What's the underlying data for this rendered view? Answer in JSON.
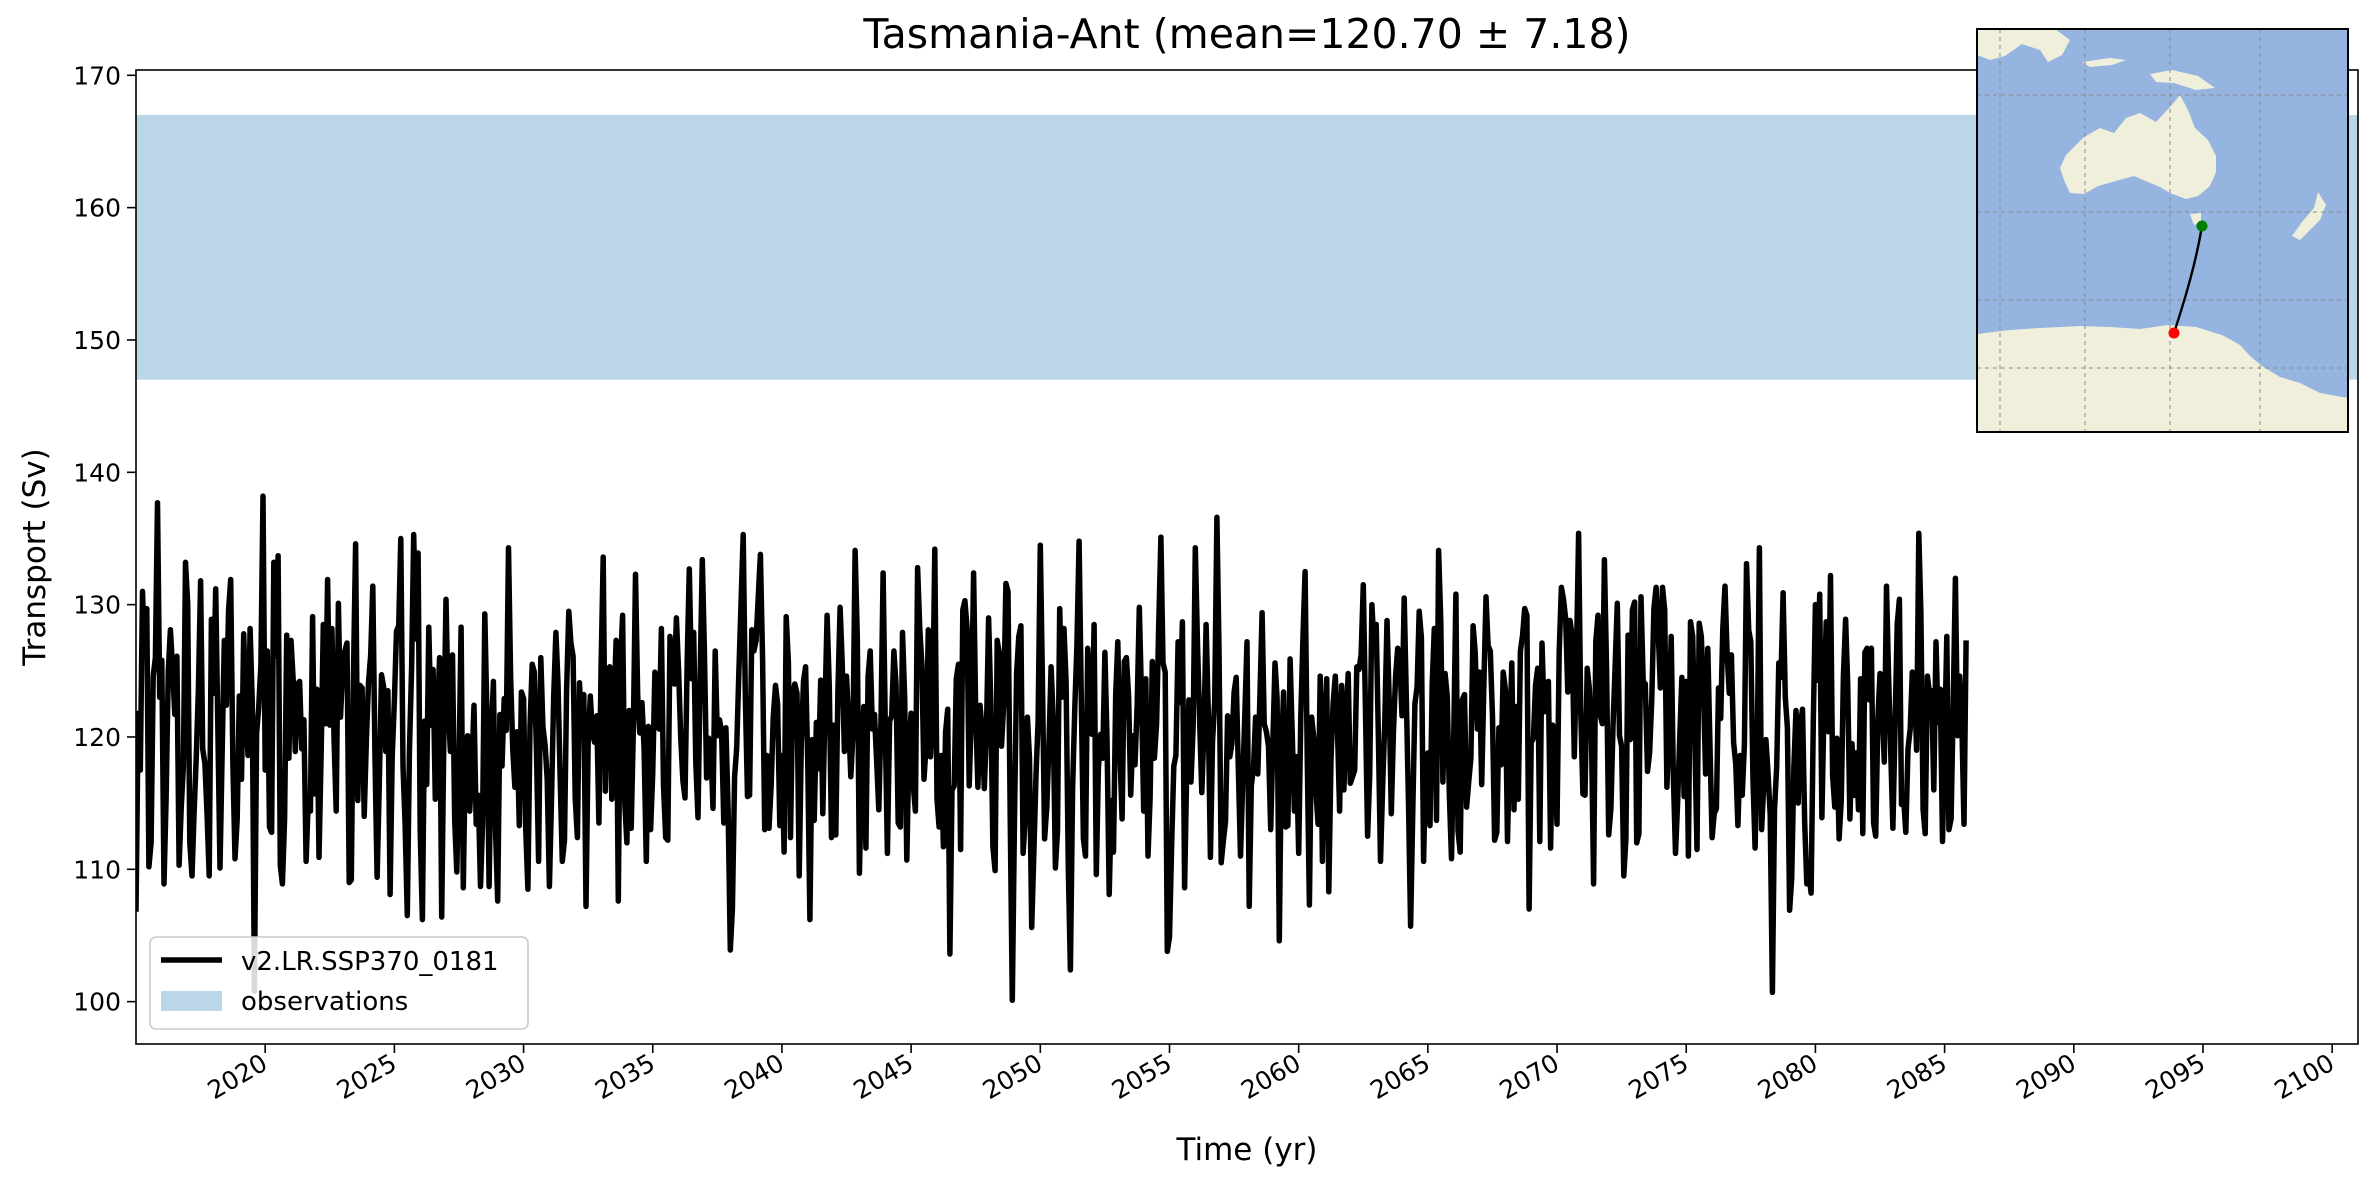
{
  "chart_data": {
    "type": "line",
    "title": "Tasmania-Ant (mean=120.70 ± 7.18)",
    "xlabel": "Time (yr)",
    "ylabel": "Transport (Sv)",
    "xlim": [
      2015.0,
      2101.0
    ],
    "ylim": [
      96.8,
      170.4
    ],
    "x_ticks": [
      2020,
      2025,
      2030,
      2035,
      2040,
      2045,
      2050,
      2055,
      2060,
      2065,
      2070,
      2075,
      2080,
      2085,
      2090,
      2095,
      2100
    ],
    "y_ticks": [
      100,
      110,
      120,
      130,
      140,
      150,
      160,
      170
    ],
    "grid": false,
    "legend_position": "lower-left",
    "observations": {
      "name": "observations",
      "range": [
        147.0,
        167.0
      ],
      "color": "#bad6e8"
    },
    "series": [
      {
        "name": "v2.LR.SSP370_0181",
        "color": "#000000",
        "x_start": 2015.0,
        "step": 0.0833333,
        "values": [
          106.8,
          121.8,
          117.5,
          131.0,
          126.2,
          129.7,
          110.2,
          112.0,
          124.6,
          126.0,
          137.7,
          123.0,
          125.8,
          108.9,
          115.3,
          125.0,
          128.1,
          125.2,
          121.7,
          126.1,
          110.3,
          114.6,
          117.8,
          133.2,
          130.1,
          112.0,
          109.5,
          114.3,
          118.6,
          123.6,
          131.8,
          119.1,
          118.0,
          114.1,
          109.5,
          128.9,
          123.3,
          131.2,
          121.0,
          110.1,
          118.6,
          127.3,
          122.4,
          129.6,
          131.9,
          117.9,
          110.8,
          113.8,
          123.1,
          116.8,
          127.8,
          121.9,
          118.6,
          128.2,
          122.5,
          100.8,
          120.3,
          122.2,
          125.5,
          138.2,
          117.5,
          126.5,
          113.2,
          112.8,
          133.2,
          126.1,
          133.7,
          110.3,
          108.9,
          113.8,
          127.7,
          118.4,
          127.3,
          124.3,
          118.9,
          124.0,
          124.2,
          119.1,
          121.3,
          110.6,
          115.1,
          114.4,
          129.1,
          115.7,
          123.6,
          110.9,
          119.0,
          128.5,
          121.0,
          131.9,
          120.9,
          128.2,
          119.7,
          114.4,
          130.1,
          121.5,
          125.1,
          126.5,
          127.1,
          109.0,
          109.2,
          124.9,
          134.6,
          115.2,
          123.9,
          123.7,
          114.0,
          119.8,
          124.1,
          126.2,
          131.4,
          118.4,
          109.4,
          116.5,
          124.7,
          123.8,
          118.9,
          123.5,
          108.1,
          118.5,
          122.8,
          128.0,
          128.4,
          135.0,
          117.8,
          113.4,
          106.5,
          118.9,
          125.2,
          135.3,
          127.4,
          133.9,
          112.9,
          106.2,
          121.2,
          116.4,
          128.3,
          120.9,
          125.1,
          115.3,
          121.5,
          126.0,
          106.4,
          120.5,
          130.4,
          122.1,
          118.9,
          126.2,
          113.7,
          109.8,
          117.9,
          128.3,
          108.6,
          119.2,
          120.1,
          114.4,
          117.8,
          122.4,
          113.4,
          115.6,
          108.7,
          113.6,
          129.3,
          121.4,
          108.7,
          120.2,
          124.2,
          112.8,
          107.6,
          121.7,
          117.8,
          122.9,
          120.5,
          134.3,
          124.6,
          119.0,
          116.2,
          120.4,
          113.3,
          123.4,
          122.9,
          113.1,
          108.5,
          120.8,
          125.5,
          124.9,
          118.9,
          110.6,
          126.0,
          120.8,
          119.4,
          116.8,
          108.7,
          115.3,
          123.1,
          127.9,
          124.1,
          116.8,
          110.6,
          112.2,
          123.6,
          129.5,
          127.1,
          126.1,
          115.4,
          112.4,
          124.1,
          120.1,
          123.2,
          107.2,
          119.8,
          123.1,
          120.2,
          119.6,
          121.6,
          113.5,
          125.4,
          133.6,
          115.9,
          124.1,
          125.3,
          115.3,
          122.2,
          127.3,
          107.6,
          125.3,
          129.2,
          115.0,
          112.0,
          122.0,
          113.1,
          120.8,
          132.3,
          123.1,
          120.3,
          122.6,
          119.1,
          110.6,
          120.8,
          113.0,
          117.2,
          124.9,
          121.2,
          120.6,
          128.2,
          116.3,
          112.4,
          112.2,
          127.6,
          125.4,
          124.0,
          129.0,
          125.0,
          120.0,
          116.7,
          115.4,
          125.8,
          132.7,
          124.4,
          127.9,
          118.1,
          113.9,
          124.4,
          133.4,
          126.5,
          116.9,
          119.9,
          119.2,
          114.6,
          126.5,
          120.1,
          121.3,
          120.4,
          113.5,
          120.7,
          114.6,
          103.9,
          107.0,
          117.0,
          119.2,
          125.0,
          130.0,
          135.3,
          123.2,
          115.5,
          115.6,
          128.1,
          126.5,
          127.3,
          130.5,
          133.8,
          125.8,
          113.0,
          118.6,
          113.1,
          116.4,
          121.6,
          123.9,
          122.5,
          113.3,
          118.6,
          111.3,
          129.1,
          125.6,
          112.4,
          123.3,
          124.0,
          123.3,
          109.5,
          119.5,
          124.2,
          125.3,
          117.9,
          106.2,
          119.8,
          113.7,
          121.1,
          117.6,
          124.3,
          114.2,
          122.3,
          129.2,
          123.8,
          112.4,
          120.9,
          112.6,
          123.4,
          129.8,
          125.6,
          118.9,
          124.6,
          121.1,
          117.0,
          120.3,
          134.1,
          127.5,
          109.7,
          117.0,
          122.3,
          111.6,
          124.6,
          126.5,
          120.6,
          121.7,
          118.1,
          114.5,
          121.3,
          132.4,
          120.8,
          111.2,
          121.2,
          121.6,
          126.5,
          124.0,
          113.5,
          113.2,
          127.9,
          122.9,
          110.7,
          119.3,
          121.8,
          116.3,
          114.4,
          132.8,
          128.3,
          125.4,
          116.8,
          119.5,
          128.1,
          118.5,
          121.4,
          134.2,
          115.3,
          113.2,
          118.6,
          111.7,
          120.4,
          122.1,
          103.6,
          116.0,
          116.3,
          124.4,
          125.5,
          111.5,
          129.6,
          130.3,
          128.2,
          116.3,
          121.9,
          132.4,
          121.9,
          116.2,
          122.4,
          120.5,
          116.1,
          120.6,
          129.0,
          122.5,
          111.7,
          109.9,
          127.3,
          126.3,
          119.3,
          122.5,
          131.6,
          131.0,
          114.0,
          100.1,
          113.9,
          124.8,
          127.6,
          128.4,
          111.2,
          113.8,
          121.5,
          118.4,
          105.6,
          111.1,
          117.1,
          121.2,
          134.5,
          123.9,
          112.3,
          114.7,
          119.3,
          125.3,
          121.4,
          110.1,
          112.9,
          129.7,
          123.0,
          128.2,
          124.1,
          110.1,
          102.4,
          116.1,
          122.2,
          126.9,
          134.8,
          123.3,
          112.3,
          111.0,
          126.7,
          123.4,
          120.2,
          128.5,
          109.6,
          117.6,
          120.2,
          118.4,
          126.4,
          119.9,
          108.1,
          115.2,
          111.3,
          123.2,
          127.2,
          118.7,
          113.8,
          125.7,
          126.0,
          123.1,
          115.6,
          120.1,
          117.9,
          122.5,
          129.8,
          123.0,
          114.4,
          124.4,
          111.0,
          115.4,
          125.7,
          118.4,
          121.0,
          128.4,
          135.1,
          125.6,
          124.9,
          103.8,
          104.9,
          111.7,
          117.8,
          118.6,
          127.2,
          122.6,
          128.7,
          108.6,
          117.4,
          122.8,
          116.6,
          120.9,
          134.3,
          127.0,
          121.3,
          115.8,
          120.5,
          128.5,
          122.1,
          110.9,
          119.6,
          122.7,
          136.6,
          126.6,
          110.5,
          112.1,
          113.6,
          121.6,
          118.5,
          119.5,
          123.4,
          124.5,
          117.4,
          111.0,
          116.5,
          121.6,
          127.2,
          107.2,
          116.3,
          117.7,
          121.5,
          117.2,
          123.0,
          129.4,
          121.0,
          120.4,
          119.3,
          113.0,
          119.4,
          125.6,
          122.9,
          104.6,
          118.7,
          123.4,
          113.2,
          113.3,
          125.9,
          120.3,
          114.4,
          118.5,
          111.2,
          121.6,
          127.6,
          132.5,
          118.1,
          107.3,
          121.5,
          120.0,
          115.9,
          113.4,
          124.6,
          110.6,
          121.0,
          124.4,
          108.3,
          118.3,
          122.5,
          124.6,
          120.8,
          114.4,
          123.9,
          116.0,
          121.0,
          124.8,
          116.5,
          117.0,
          117.5,
          125.3,
          125.1,
          126.2,
          131.5,
          122.3,
          112.5,
          117.1,
          130.0,
          126.9,
          128.5,
          120.4,
          110.6,
          116.2,
          121.2,
          128.8,
          123.1,
          114.2,
          120.3,
          124.6,
          126.7,
          125.6,
          121.6,
          130.5,
          123.0,
          115.0,
          105.7,
          114.5,
          122.5,
          123.8,
          129.5,
          127.5,
          110.6,
          118.3,
          118.8,
          113.3,
          124.0,
          128.2,
          113.7,
          134.1,
          128.7,
          116.6,
          124.8,
          123.1,
          115.5,
          110.8,
          119.8,
          130.8,
          112.9,
          111.3,
          122.8,
          123.2,
          114.7,
          116.7,
          118.4,
          128.4,
          126.4,
          120.6,
          124.9,
          116.4,
          123.7,
          130.6,
          126.9,
          126.5,
          121.5,
          112.2,
          112.8,
          120.7,
          117.9,
          124.9,
          123.6,
          112.1,
          119.9,
          125.6,
          114.5,
          122.3,
          115.3,
          126.5,
          127.7,
          129.7,
          129.2,
          107.0,
          119.6,
          119.9,
          123.9,
          125.2,
          112.1,
          127.1,
          121.9,
          124.0,
          124.2,
          111.6,
          120.9,
          118.7,
          113.4,
          126.5,
          131.3,
          130.4,
          128.9,
          123.4,
          128.8,
          127.7,
          118.5,
          125.8,
          135.4,
          122.1,
          115.7,
          115.6,
          125.2,
          123.7,
          120.0,
          108.9,
          127.2,
          129.2,
          121.7,
          121.0,
          133.4,
          125.0,
          112.6,
          114.6,
          120.8,
          125.5,
          130.1,
          120.1,
          119.3,
          109.5,
          112.3,
          127.7,
          119.8,
          129.6,
          130.2,
          112.0,
          112.7,
          130.6,
          124.2,
          124.0,
          117.4,
          118.8,
          122.9,
          129.7,
          131.3,
          128.0,
          123.7,
          131.3,
          129.6,
          116.2,
          120.8,
          127.6,
          117.2,
          111.2,
          115.0,
          120.1,
          124.5,
          115.5,
          124.2,
          111.0,
          128.7,
          127.6,
          120.0,
          111.5,
          128.6,
          127.6,
          123.5,
          117.2,
          126.7,
          119.6,
          112.4,
          114.2,
          114.6,
          123.7,
          121.4,
          128.2,
          131.4,
          126.3,
          123.3,
          126.2,
          119.6,
          117.9,
          113.3,
          118.6,
          115.6,
          119.4,
          133.1,
          128.1,
          127.2,
          116.7,
          111.6,
          119.4,
          134.3,
          113.0,
          116.3,
          119.8,
          117.3,
          114.1,
          100.7,
          114.5,
          117.8,
          125.6,
          124.5,
          130.9,
          123.0,
          120.7,
          106.9,
          109.3,
          117.8,
          122.0,
          115.0,
          120.9,
          122.1,
          113.5,
          108.9,
          109.7,
          108.2,
          121.2,
          130.0,
          124.3,
          130.8,
          113.9,
          122.4,
          128.7,
          120.4,
          132.2,
          117.1,
          114.7,
          119.9,
          112.3,
          115.3,
          124.6,
          128.9,
          124.0,
          113.8,
          119.5,
          115.6,
          118.8,
          114.5,
          124.4,
          112.7,
          126.4,
          126.7,
          122.8,
          126.7,
          113.5,
          112.5,
          121.4,
          124.8,
          122.1,
          118.1,
          131.4,
          124.5,
          118.7,
          113.1,
          121.0,
          128.5,
          130.4,
          114.9,
          115.3,
          112.8,
          119.1,
          120.6,
          124.9,
          124.1,
          119.0,
          135.4,
          129.3,
          114.5,
          112.7,
          124.6,
          123.3,
          123.5,
          116.0,
          127.2,
          121.1,
          123.6,
          112.1,
          119.5,
          127.6,
          113.0,
          113.8,
          122.4,
          132.0,
          120.1,
          124.6,
          121.2,
          113.4,
          127.3
        ]
      }
    ],
    "inset_map": {
      "land_color": "#efefdc",
      "ocean_color": "#96b4e0",
      "section_start_color": "#008000",
      "section_end_color": "#ff0000"
    }
  }
}
